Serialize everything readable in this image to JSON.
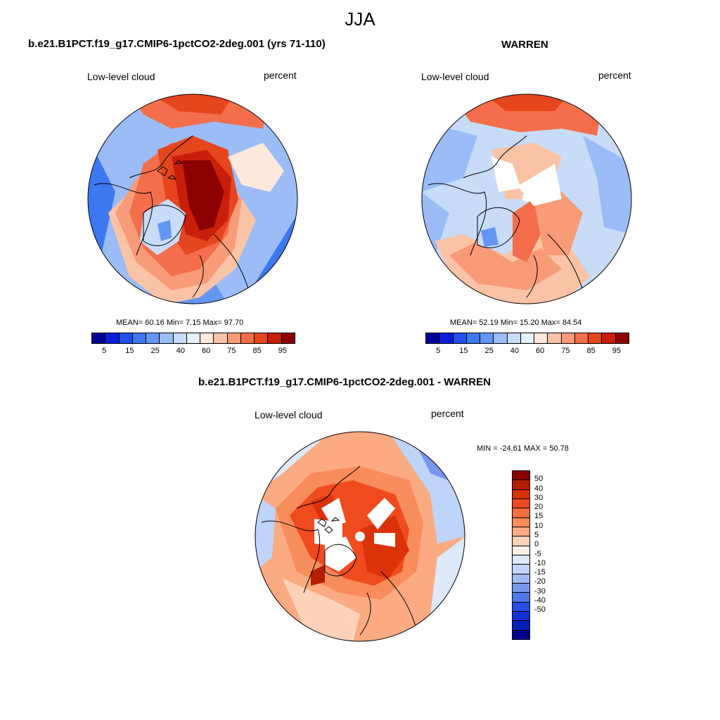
{
  "figure": {
    "title": "JJA",
    "top_left_title": "b.e21.B1PCT.f19_g17.CMIP6-1pctCO2-2deg.001 (yrs 71-110)",
    "top_right_title": "WARREN",
    "bottom_title": "b.e21.B1PCT.f19_g17.CMIP6-1pctCO2-2deg.001 - WARREN"
  },
  "panels": [
    {
      "left_label": "Low-level cloud",
      "right_label": "percent",
      "stats": "MEAN=  60.16  Min=   7.15  Max=  97.70"
    },
    {
      "left_label": "Low-level cloud",
      "right_label": "percent",
      "stats": "MEAN=  52.19  Min=  15.20  Max=  84.54"
    },
    {
      "left_label": "Low-level cloud",
      "right_label": "percent",
      "stats": "MIN = -24.61 MAX =  50.78"
    }
  ],
  "colorbar_abs": {
    "colors": [
      "#000096",
      "#0a1edc",
      "#1e50eb",
      "#3c78f0",
      "#6496f5",
      "#9bbcf7",
      "#c8dcf8",
      "#e6f0fa",
      "#fde8dc",
      "#fbc3a5",
      "#f89b78",
      "#f46e4b",
      "#e6461e",
      "#c81e0a",
      "#8c0000"
    ],
    "tick_labels": [
      "5",
      "15",
      "25",
      "40",
      "60",
      "75",
      "85",
      "95"
    ]
  },
  "colorbar_diff": {
    "colors": [
      "#8c0000",
      "#b41e00",
      "#dc320a",
      "#f04b1e",
      "#f56e3c",
      "#f88c5a",
      "#fbaa82",
      "#fdd2b9",
      "#fff0e6",
      "#dceafa",
      "#bed4f8",
      "#a0bcf5",
      "#7896f0",
      "#5078eb",
      "#2850e6",
      "#0f32d2",
      "#051eb4",
      "#00008c"
    ],
    "tick_labels": [
      "50",
      "40",
      "30",
      "20",
      "15",
      "10",
      "5",
      "0",
      "-5",
      "-10",
      "-15",
      "-20",
      "-30",
      "-40",
      "-50"
    ]
  }
}
